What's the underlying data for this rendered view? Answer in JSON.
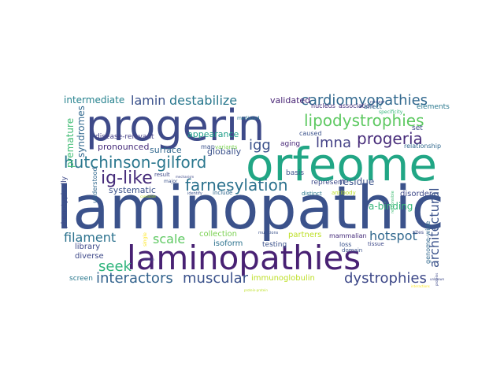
{
  "words": [
    {
      "text": "laminopathic",
      "color": "#3b528b"
    },
    {
      "text": "orfeome",
      "color": "#21a685"
    },
    {
      "text": "progerin",
      "color": "#3e4a89"
    },
    {
      "text": "laminopathies",
      "color": "#482173"
    },
    {
      "text": "hutchinson-gilford",
      "color": "#2a778e"
    },
    {
      "text": "lipodystrophies",
      "color": "#5ec962"
    },
    {
      "text": "cardiomyopathies",
      "color": "#31688e"
    },
    {
      "text": "ig-like",
      "color": "#472d7b"
    },
    {
      "text": "farnesylation",
      "color": "#2c728e"
    },
    {
      "text": "progeria",
      "color": "#472c7a"
    },
    {
      "text": "lmna",
      "color": "#424086"
    },
    {
      "text": "igg",
      "color": "#3b528b"
    },
    {
      "text": "destabilize",
      "color": "#2a788e"
    },
    {
      "text": "lamin",
      "color": "#3b528b"
    },
    {
      "text": "interactors",
      "color": "#33638d"
    },
    {
      "text": "muscular",
      "color": "#3b528b"
    },
    {
      "text": "dystrophies",
      "color": "#3e4989"
    },
    {
      "text": "hotspot",
      "color": "#31688e"
    },
    {
      "text": "architectural",
      "color": "#3b528b"
    },
    {
      "text": "filament",
      "color": "#2c728e"
    },
    {
      "text": "seek",
      "color": "#2fb47c"
    },
    {
      "text": "scale",
      "color": "#5ec962"
    },
    {
      "text": "intermediate",
      "color": "#26828e"
    },
    {
      "text": "validated",
      "color": "#482475"
    },
    {
      "text": "premature",
      "color": "#3fbc73"
    },
    {
      "text": "syndromes",
      "color": "#31688e"
    },
    {
      "text": "appearance",
      "color": "#1f9e89"
    },
    {
      "text": "globally",
      "color": "#3b528b"
    },
    {
      "text": "pronounced",
      "color": "#472d7b"
    },
    {
      "text": "surface",
      "color": "#31688e"
    },
    {
      "text": "residue",
      "color": "#3b528b"
    },
    {
      "text": "a-binding",
      "color": "#35b779"
    },
    {
      "text": "systematic",
      "color": "#3b528b"
    },
    {
      "text": "collection",
      "color": "#7ad151"
    },
    {
      "text": "partners",
      "color": "#bddf26"
    },
    {
      "text": "isoform",
      "color": "#2c728e"
    },
    {
      "text": "testing",
      "color": "#3b528b"
    },
    {
      "text": "immunoglobulin",
      "color": "#bddf26"
    },
    {
      "text": "library",
      "color": "#3e4989"
    },
    {
      "text": "diverse",
      "color": "#3e4989"
    },
    {
      "text": "screen",
      "color": "#2a788e"
    },
    {
      "text": "phenotypically",
      "color": "#3e4989"
    },
    {
      "text": "understood",
      "color": "#31688e"
    },
    {
      "text": "aging",
      "color": "#482878"
    },
    {
      "text": "map",
      "color": "#3b528b"
    },
    {
      "text": "disease-relevant",
      "color": "#433e85"
    },
    {
      "text": "represent",
      "color": "#3e4989"
    },
    {
      "text": "disorder",
      "color": "#3e4989"
    },
    {
      "text": "mammalian",
      "color": "#472d7b"
    },
    {
      "text": "genome-wide",
      "color": "#31688e"
    },
    {
      "text": "elements",
      "color": "#2a788e"
    },
    {
      "text": "relationship",
      "color": "#31688e"
    },
    {
      "text": "set",
      "color": "#3e4989"
    },
    {
      "text": "caused",
      "color": "#3b528b"
    },
    {
      "text": "basis",
      "color": "#3b528b"
    },
    {
      "text": "association",
      "color": "#472d7b"
    },
    {
      "text": "nucleus",
      "color": "#472d7b"
    },
    {
      "text": "affect",
      "color": "#31688e"
    },
    {
      "text": "specificity",
      "color": "#35b779"
    },
    {
      "text": "variants",
      "color": "#7ad151"
    },
    {
      "text": "mediated",
      "color": "#2a788e"
    },
    {
      "text": "result",
      "color": "#3e4989"
    },
    {
      "text": "major",
      "color": "#3b528b"
    },
    {
      "text": "mechanism",
      "color": "#3e4989"
    },
    {
      "text": "distinct",
      "color": "#2a788e"
    },
    {
      "text": "tissue",
      "color": "#3e4989"
    },
    {
      "text": "loss",
      "color": "#3b528b"
    },
    {
      "text": "domain",
      "color": "#3b528b"
    },
    {
      "text": "sites",
      "color": "#3e4989"
    },
    {
      "text": "include",
      "color": "#31688e"
    },
    {
      "text": "identify",
      "color": "#3b528b"
    },
    {
      "text": "antibody",
      "color": "#bddf26"
    },
    {
      "text": "responsible",
      "color": "#3fbc73"
    },
    {
      "text": "single",
      "color": "#fde725"
    },
    {
      "text": "mutations",
      "color": "#3b528b"
    },
    {
      "text": "nuclear",
      "color": "#3e4989"
    },
    {
      "text": "proteins",
      "color": "#3e4989"
    },
    {
      "text": "protein-protein",
      "color": "#bddf26"
    },
    {
      "text": "interactions",
      "color": "#fde725"
    },
    {
      "text": "unknown",
      "color": "#3e4989"
    },
    {
      "text": "candidate",
      "color": "#bddf26"
    },
    {
      "text": "human",
      "color": "#3e4989"
    }
  ]
}
